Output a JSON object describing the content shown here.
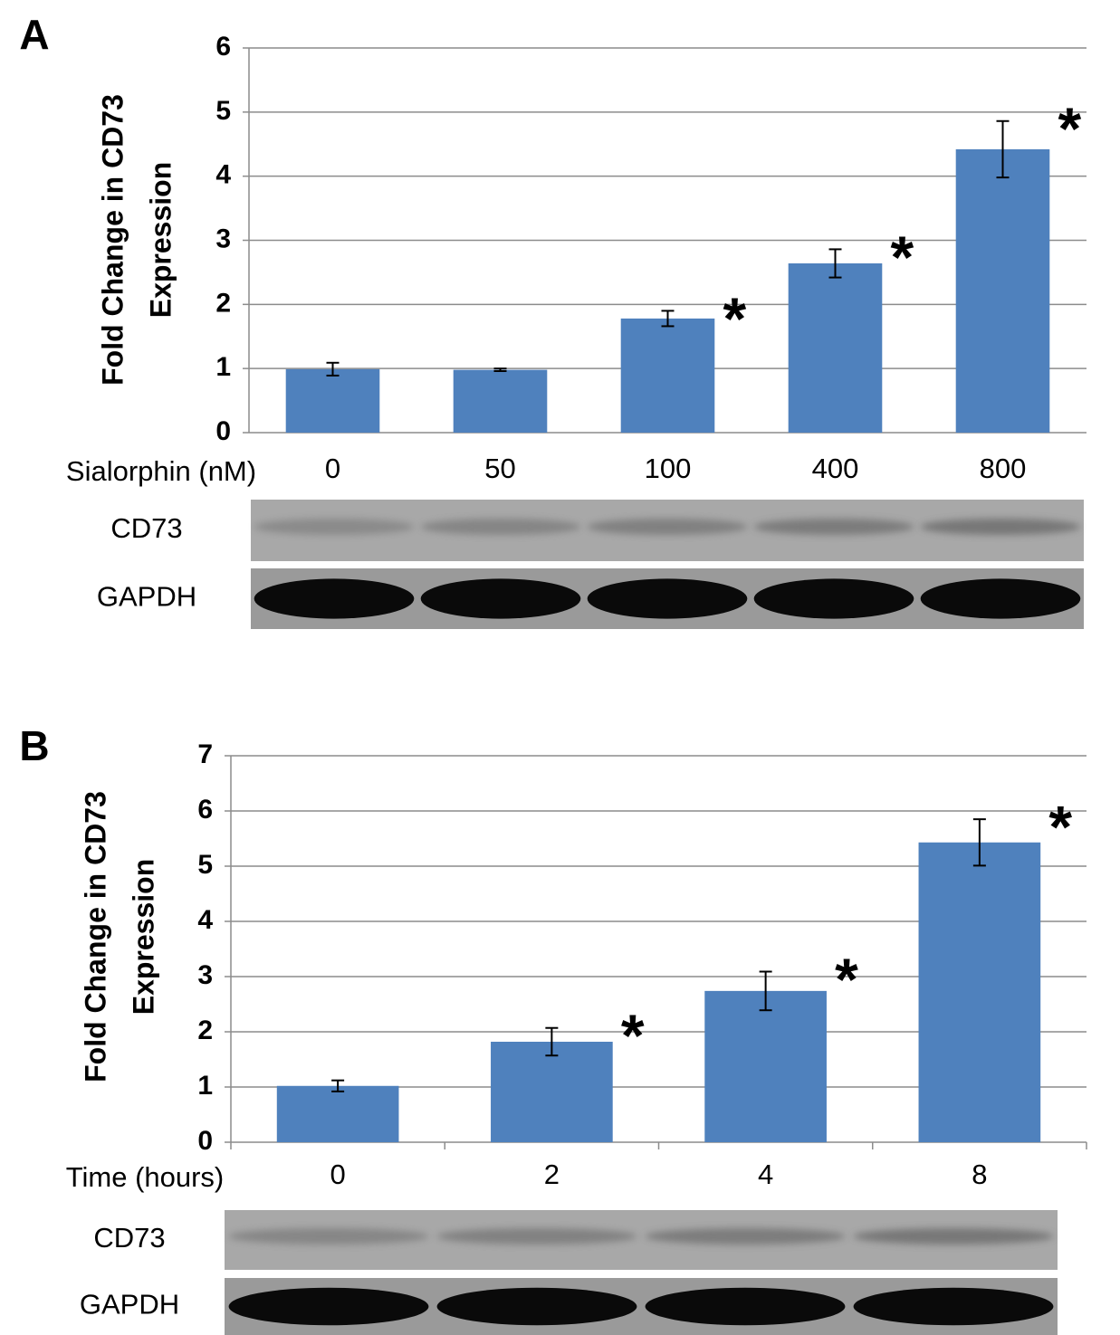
{
  "chart_data": [
    {
      "type": "bar",
      "panel": "A",
      "y_label": [
        "Fold Change in CD73",
        "Expression"
      ],
      "x_label": "Sialorphin (nM)",
      "categories": [
        "0",
        "50",
        "100",
        "400",
        "800"
      ],
      "values": [
        0.99,
        0.98,
        1.78,
        2.64,
        4.42
      ],
      "errors": [
        0.1,
        0.02,
        0.12,
        0.22,
        0.44
      ],
      "significance": [
        null,
        null,
        "*",
        "*",
        "*"
      ],
      "color": "#4f81bd",
      "ylim": [
        0,
        6
      ],
      "yticks": [
        0,
        1,
        2,
        3,
        4,
        5,
        6
      ],
      "grid": true,
      "blots": [
        "CD73",
        "GAPDH"
      ]
    },
    {
      "type": "bar",
      "panel": "B",
      "y_label": [
        "Fold Change in CD73",
        "Expression"
      ],
      "x_label": "Time (hours)",
      "categories": [
        "0",
        "2",
        "4",
        "8"
      ],
      "values": [
        1.02,
        1.82,
        2.74,
        5.43
      ],
      "errors": [
        0.1,
        0.25,
        0.35,
        0.42
      ],
      "significance": [
        null,
        "*",
        "*",
        "*"
      ],
      "color": "#4f81bd",
      "ylim": [
        0,
        7
      ],
      "yticks": [
        0,
        1,
        2,
        3,
        4,
        5,
        6,
        7
      ],
      "grid": true,
      "blots": [
        "CD73",
        "GAPDH"
      ]
    }
  ]
}
